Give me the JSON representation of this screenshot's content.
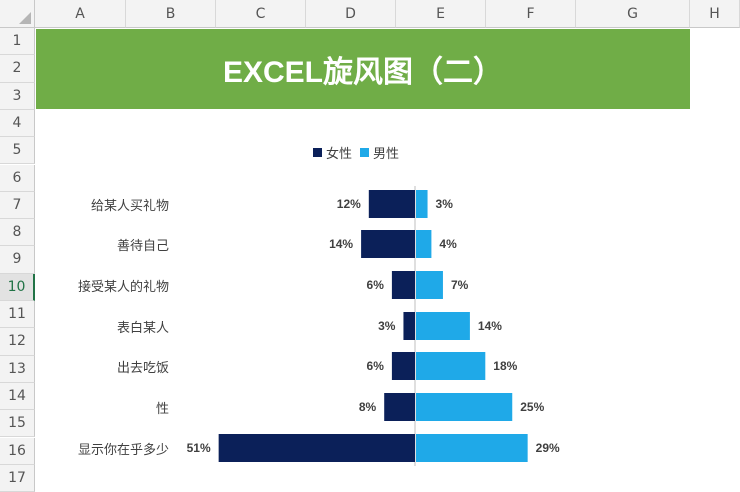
{
  "spreadsheet": {
    "columns": [
      "A",
      "B",
      "C",
      "D",
      "E",
      "F",
      "G",
      "H"
    ],
    "rows": [
      "1",
      "2",
      "3",
      "4",
      "5",
      "6",
      "7",
      "8",
      "9",
      "10",
      "11",
      "12",
      "13",
      "14",
      "15",
      "16",
      "17"
    ],
    "active_row": "10"
  },
  "banner": {
    "title": "EXCEL旋风图（二）"
  },
  "colors": {
    "female": "#0b2059",
    "male": "#1fa9e8",
    "banner": "#70ad47"
  },
  "chart_data": {
    "type": "bar",
    "orientation": "horizontal-butterfly",
    "categories": [
      "给某人买礼物",
      "善待自己",
      "接受某人的礼物",
      "表白某人",
      "出去吃饭",
      "性",
      "显示你在乎多少"
    ],
    "series": [
      {
        "name": "女性",
        "values": [
          12,
          14,
          6,
          3,
          6,
          8,
          51
        ],
        "labels": [
          "12%",
          "14%",
          "6%",
          "3%",
          "6%",
          "8%",
          "51%"
        ]
      },
      {
        "name": "男性",
        "values": [
          3,
          4,
          7,
          14,
          18,
          25,
          29
        ],
        "labels": [
          "3%",
          "4%",
          "7%",
          "14%",
          "18%",
          "25%",
          "29%"
        ]
      }
    ],
    "unit": "%",
    "legend": "top-center"
  }
}
